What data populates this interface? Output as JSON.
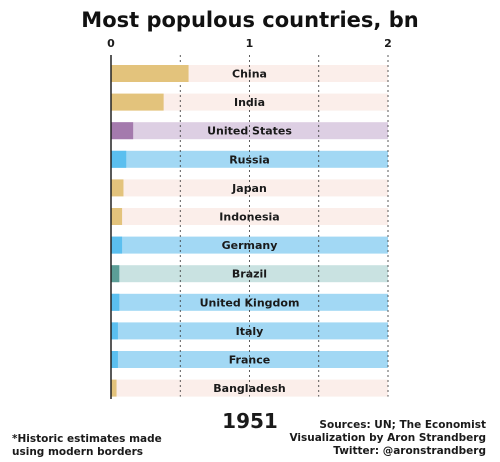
{
  "chart_data": {
    "type": "bar",
    "title": "Most populous countries, bn",
    "year": "1951",
    "xlim": [
      0,
      2
    ],
    "x_ticks": [
      "0",
      "1",
      "2"
    ],
    "categories": [
      "China",
      "India",
      "United States",
      "Russia",
      "Japan",
      "Indonesia",
      "Germany",
      "Brazil",
      "United Kingdom",
      "Italy",
      "France",
      "Bangladesh"
    ],
    "values": [
      0.56,
      0.38,
      0.16,
      0.11,
      0.09,
      0.08,
      0.08,
      0.06,
      0.06,
      0.05,
      0.05,
      0.04
    ],
    "colors": [
      "#e3c37c",
      "#e3c37c",
      "#a47aad",
      "#5bbfef",
      "#e3c37c",
      "#e3c37c",
      "#5bbfef",
      "#5c9e97",
      "#5bbfef",
      "#5bbfef",
      "#5bbfef",
      "#e3c37c"
    ],
    "track_colors": [
      "#fbeeea",
      "#fbeeea",
      "#ddcfe3",
      "#a2d8f4",
      "#fbeeea",
      "#fbeeea",
      "#a2d8f4",
      "#c9e2e1",
      "#a2d8f4",
      "#a2d8f4",
      "#a2d8f4",
      "#fbeeea"
    ],
    "grid": true
  },
  "footnote": {
    "line1": "*Historic estimates made",
    "line2": "using modern borders"
  },
  "credits": {
    "line1": "Sources: UN; The Economist",
    "line2": "Visualization by Aron Strandberg",
    "line3": "Twitter: @aronstrandberg"
  }
}
